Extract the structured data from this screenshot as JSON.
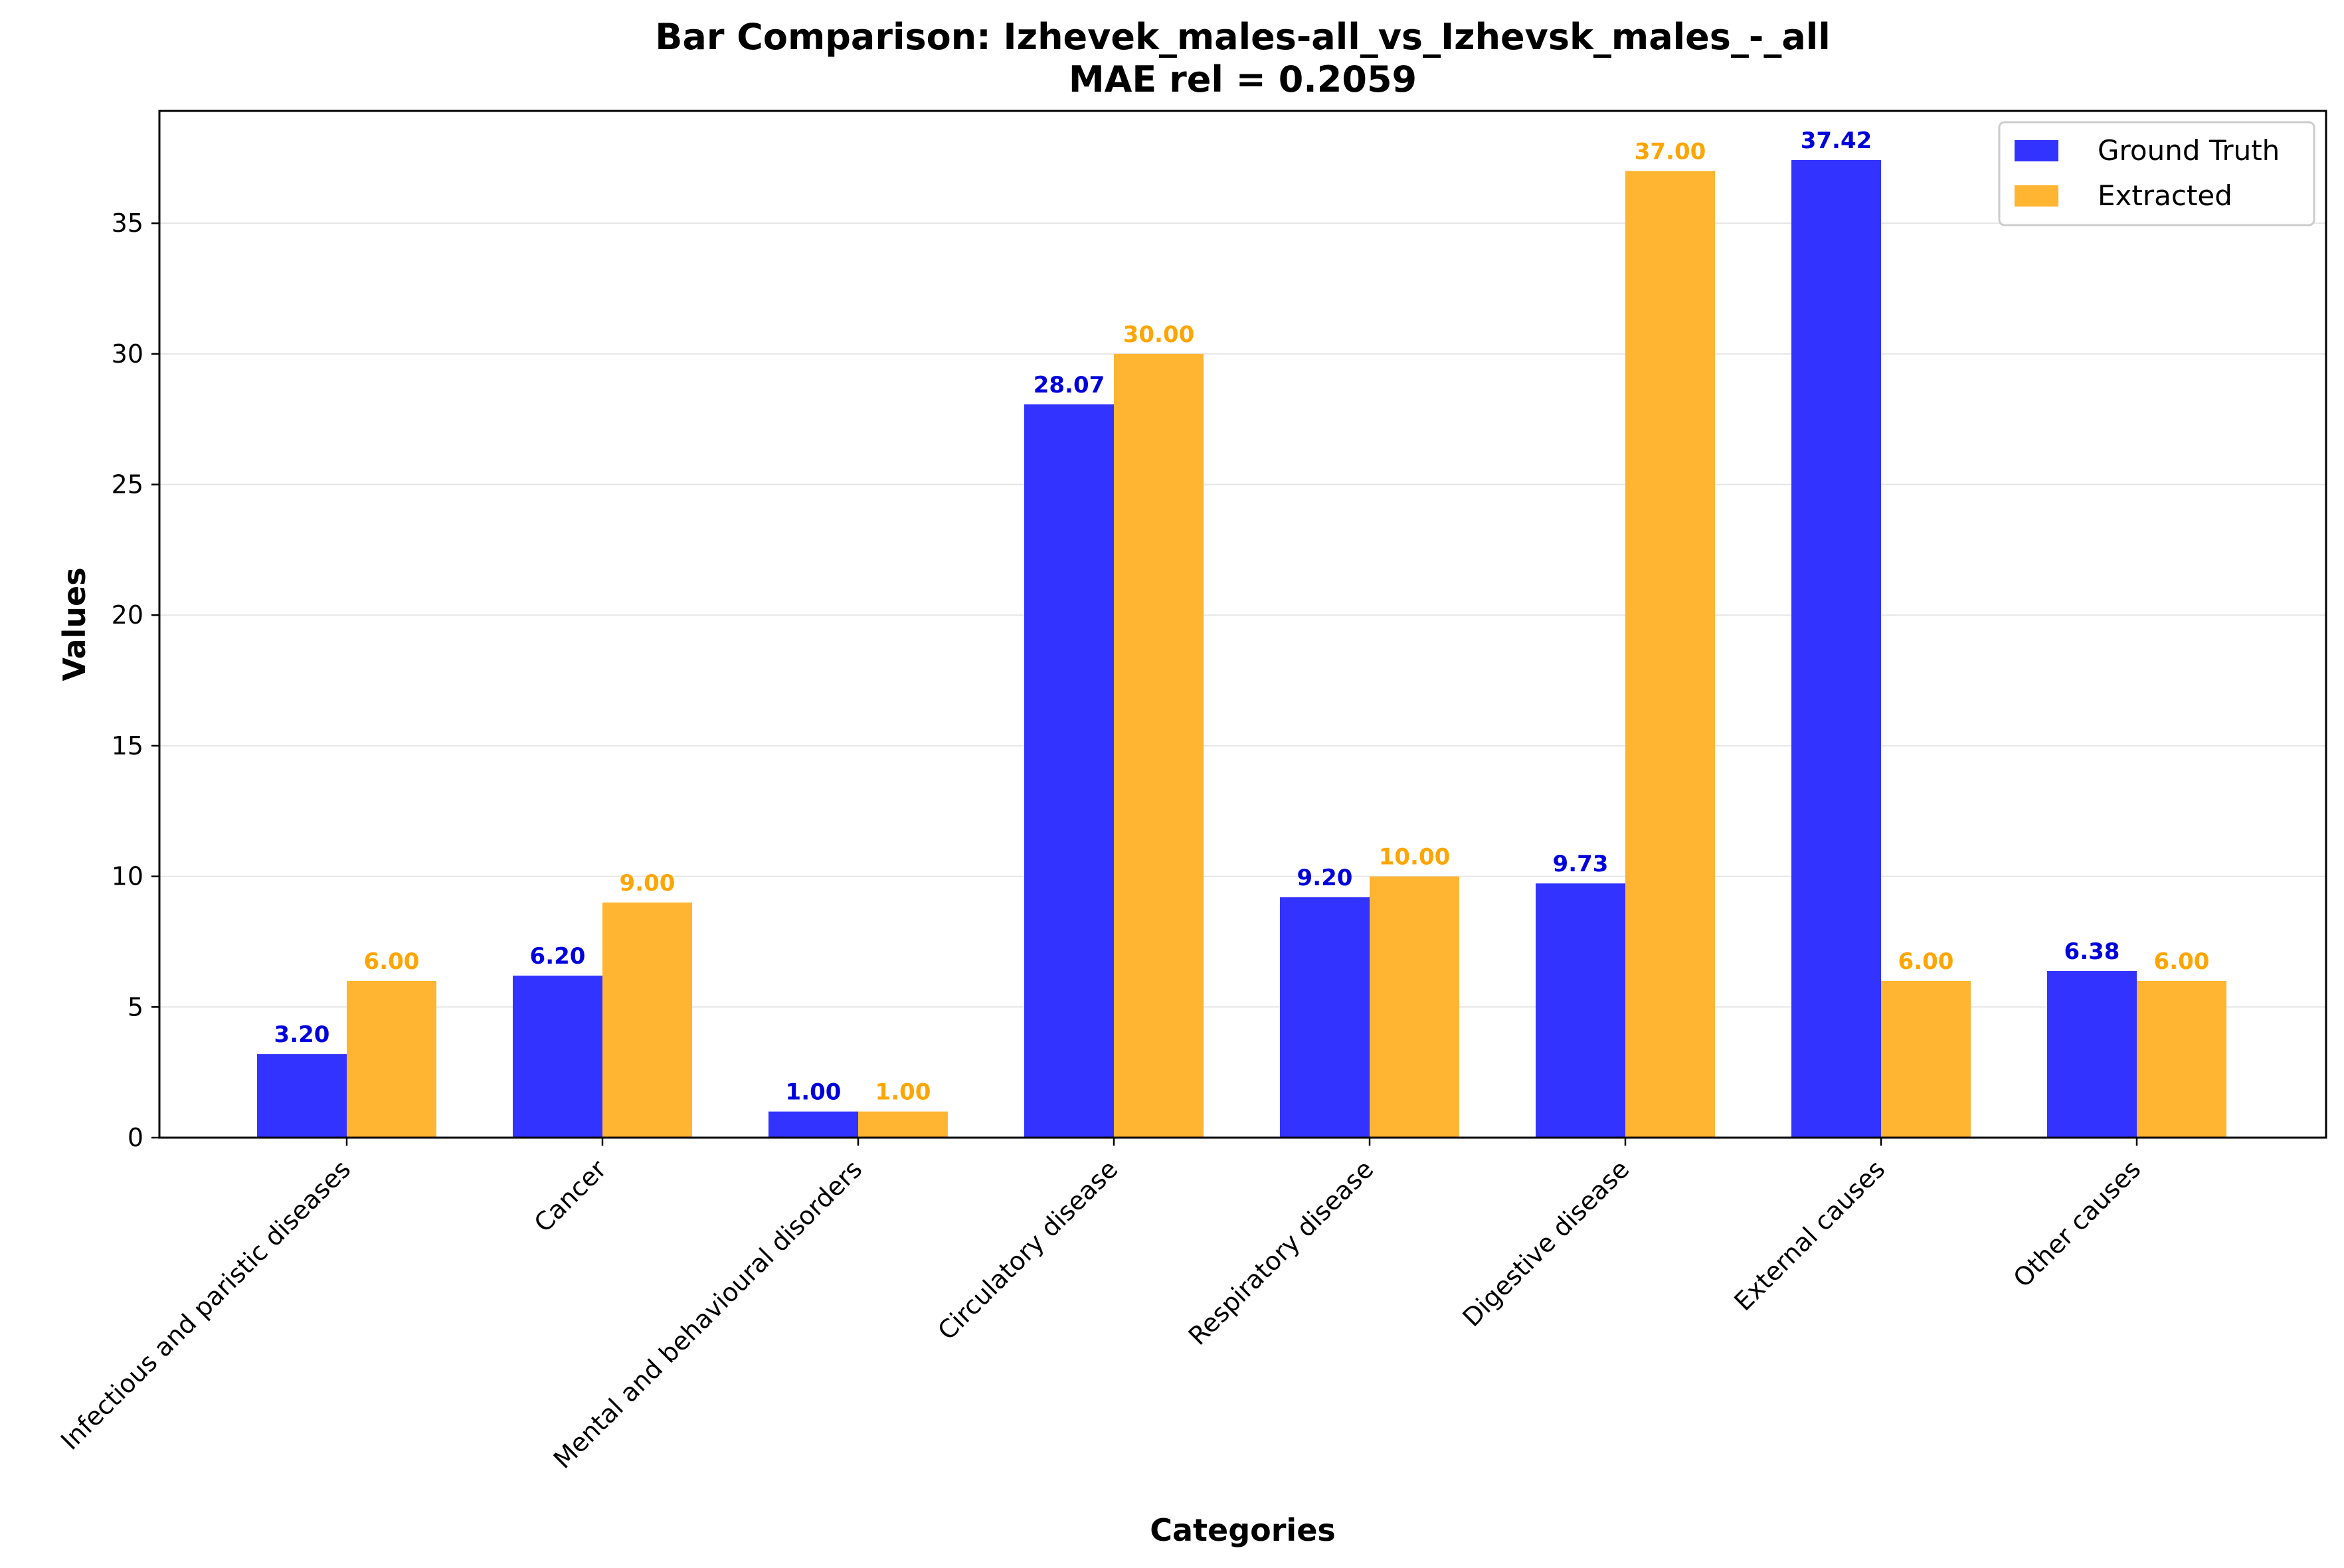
{
  "chart_data": {
    "type": "bar",
    "title": "Bar Comparison: Izhevek_males-all_vs_Izhevsk_males_-_all",
    "subtitle": "MAE rel = 0.2059",
    "xlabel": "Categories",
    "ylabel": "Values",
    "ylim": [
      0,
      39.3
    ],
    "yticks": [
      0,
      5,
      10,
      15,
      20,
      25,
      30,
      35
    ],
    "grid": "y",
    "legend_position": "top-right",
    "categories": [
      "Infectious and paristic diseases",
      "Cancer",
      "Mental and behavioural disorders",
      "Circulatory disease",
      "Respiratory disease",
      "Digestive disease",
      "External causes",
      "Other causes"
    ],
    "series": [
      {
        "name": "Ground Truth",
        "color": "#3333ff",
        "label_color": "#0000dd",
        "values": [
          3.2,
          6.2,
          1.0,
          28.07,
          9.2,
          9.73,
          37.42,
          6.38
        ],
        "labels": [
          "3.20",
          "6.20",
          "1.00",
          "28.07",
          "9.20",
          "9.73",
          "37.42",
          "6.38"
        ]
      },
      {
        "name": "Extracted",
        "color": "#ffb432",
        "label_color": "#ffa500",
        "values": [
          6.0,
          9.0,
          1.0,
          30.0,
          10.0,
          37.0,
          6.0,
          6.0
        ],
        "labels": [
          "6.00",
          "9.00",
          "1.00",
          "30.00",
          "10.00",
          "37.00",
          "6.00",
          "6.00"
        ]
      }
    ]
  }
}
